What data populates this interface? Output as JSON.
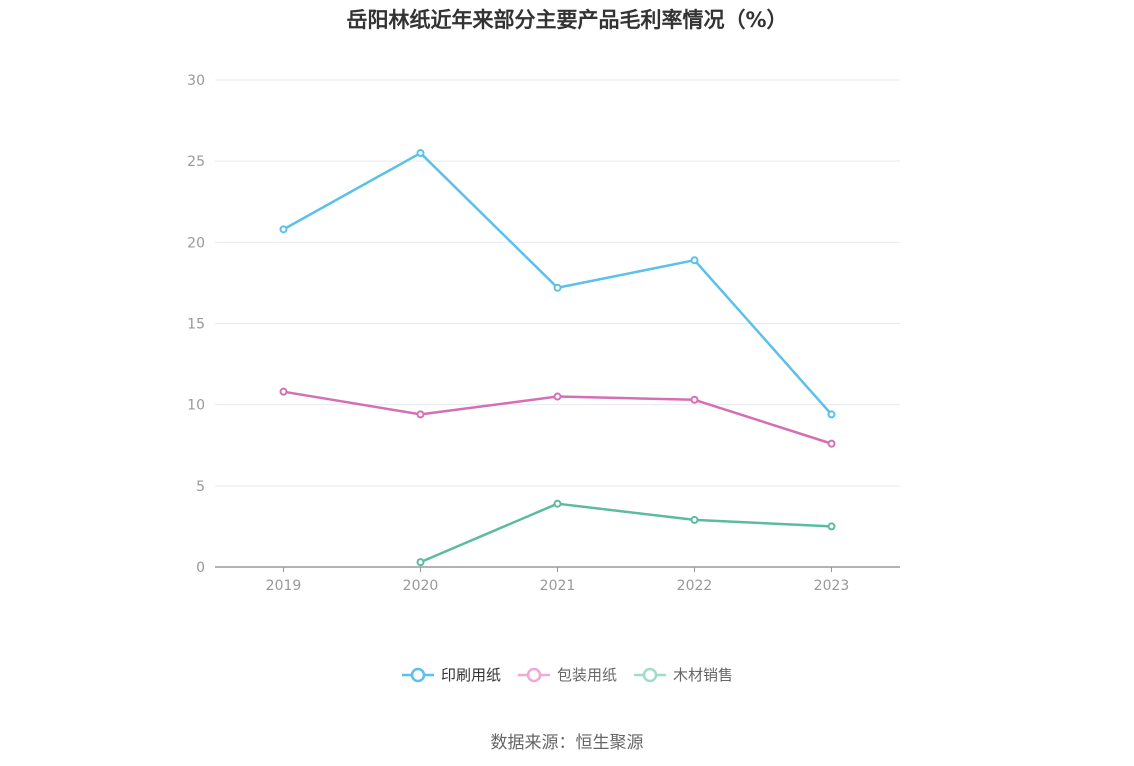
{
  "chart_data": {
    "type": "line",
    "title": "岳阳林纸近年来部分主要产品毛利率情况（%）",
    "categories": [
      "2019",
      "2020",
      "2021",
      "2022",
      "2023"
    ],
    "y_ticks": [
      "0",
      "5",
      "10",
      "15",
      "20",
      "25",
      "30"
    ],
    "ylim": [
      0,
      30
    ],
    "grid": true,
    "legend_position": "bottom",
    "series": [
      {
        "name": "印刷用纸",
        "color": "#5bc0eb",
        "light_color": "#5bc0eb",
        "values": [
          20.8,
          25.5,
          17.2,
          18.9,
          9.4
        ]
      },
      {
        "name": "包装用纸",
        "color": "#d46fb5",
        "light_color": "#f0a8d8",
        "values": [
          10.8,
          9.4,
          10.5,
          10.3,
          7.6
        ]
      },
      {
        "name": "木材销售",
        "color": "#5bbba0",
        "light_color": "#9fdcc9",
        "values": [
          null,
          0.3,
          3.9,
          2.9,
          2.5
        ]
      }
    ]
  },
  "source_text": "数据来源：恒生聚源"
}
